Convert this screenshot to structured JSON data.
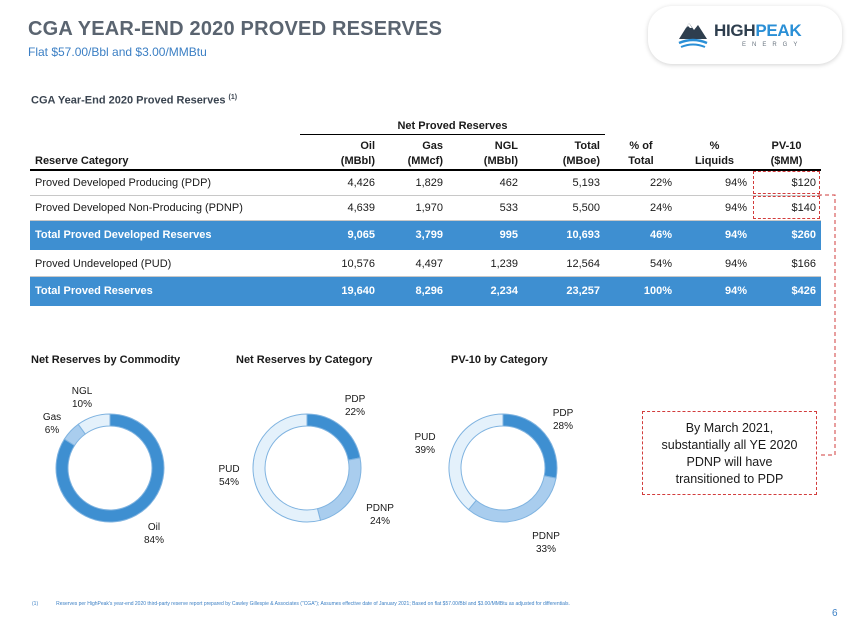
{
  "header": {
    "title": "CGA YEAR-END 2020 PROVED RESERVES",
    "subtitle": "Flat $57.00/Bbl and $3.00/MMBtu"
  },
  "logo": {
    "high": "HIGH",
    "peak": "PEAK",
    "sub": "ENERGY",
    "icon": "mountain-icon"
  },
  "section": {
    "title": "CGA Year-End 2020 Proved Reserves",
    "note": "(1)"
  },
  "table": {
    "group_header": "Net Proved Reserves",
    "columns": [
      {
        "line1": "",
        "line2": "Reserve Category"
      },
      {
        "line1": "Oil",
        "line2": "(MBbl)"
      },
      {
        "line1": "Gas",
        "line2": "(MMcf)"
      },
      {
        "line1": "NGL",
        "line2": "(MBbl)"
      },
      {
        "line1": "Total",
        "line2": "(MBoe)"
      },
      {
        "line1": "% of",
        "line2": "Total"
      },
      {
        "line1": "%",
        "line2": "Liquids"
      },
      {
        "line1": "PV-10",
        "line2": "($MM)"
      }
    ],
    "rows": [
      {
        "cells": [
          "Proved Developed Producing (PDP)",
          "4,426",
          "1,829",
          "462",
          "5,193",
          "22%",
          "94%",
          "$120"
        ]
      },
      {
        "cells": [
          "Proved Developed Non-Producing (PDNP)",
          "4,639",
          "1,970",
          "533",
          "5,500",
          "24%",
          "94%",
          "$140"
        ]
      },
      {
        "cells": [
          "Total Proved Developed Reserves",
          "9,065",
          "3,799",
          "995",
          "10,693",
          "46%",
          "94%",
          "$260"
        ]
      },
      {
        "cells": [
          "Proved Undeveloped (PUD)",
          "10,576",
          "4,497",
          "1,239",
          "12,564",
          "54%",
          "94%",
          "$166"
        ]
      },
      {
        "cells": [
          "Total Proved Reserves",
          "19,640",
          "8,296",
          "2,234",
          "23,257",
          "100%",
          "94%",
          "$426"
        ]
      }
    ]
  },
  "chart_data": [
    {
      "type": "pie",
      "title": "Net Reserves by Commodity",
      "categories": [
        "Oil",
        "Gas",
        "NGL"
      ],
      "values": [
        84,
        6,
        10
      ],
      "labels": [
        "84%",
        "6%",
        "10%"
      ],
      "colors": [
        "#3e8fd1",
        "#a9cdee",
        "#e4f1fb"
      ]
    },
    {
      "type": "pie",
      "title": "Net Reserves by Category",
      "categories": [
        "PDP",
        "PDNP",
        "PUD"
      ],
      "values": [
        22,
        24,
        54
      ],
      "labels": [
        "22%",
        "24%",
        "54%"
      ],
      "colors": [
        "#3e8fd1",
        "#a9cdee",
        "#e4f1fb"
      ]
    },
    {
      "type": "pie",
      "title": "PV-10 by Category",
      "categories": [
        "PDP",
        "PDNP",
        "PUD"
      ],
      "values": [
        28,
        33,
        39
      ],
      "labels": [
        "28%",
        "33%",
        "39%"
      ],
      "colors": [
        "#3e8fd1",
        "#a9cdee",
        "#e4f1fb"
      ]
    }
  ],
  "callout": {
    "lines": [
      "By March 2021,",
      "substantially all YE 2020",
      "PDNP will have",
      "transitioned to PDP"
    ]
  },
  "footnote": {
    "mark": "(1)",
    "text": "Reserves per HighPeak's year-end 2020 third-party reserve report prepared by Cawley Gillespie & Associates (\"CGA\"); Assumes effective date of January 2021; Based on flat $57.00/Bbl and $3.00/MMBtu as adjusted for differentials."
  },
  "page": {
    "number": "6"
  },
  "colors": {
    "accent": "#3e8fd1",
    "title": "#5a6470",
    "subtitle": "#3b7fc4",
    "dash": "#d23c3c"
  }
}
